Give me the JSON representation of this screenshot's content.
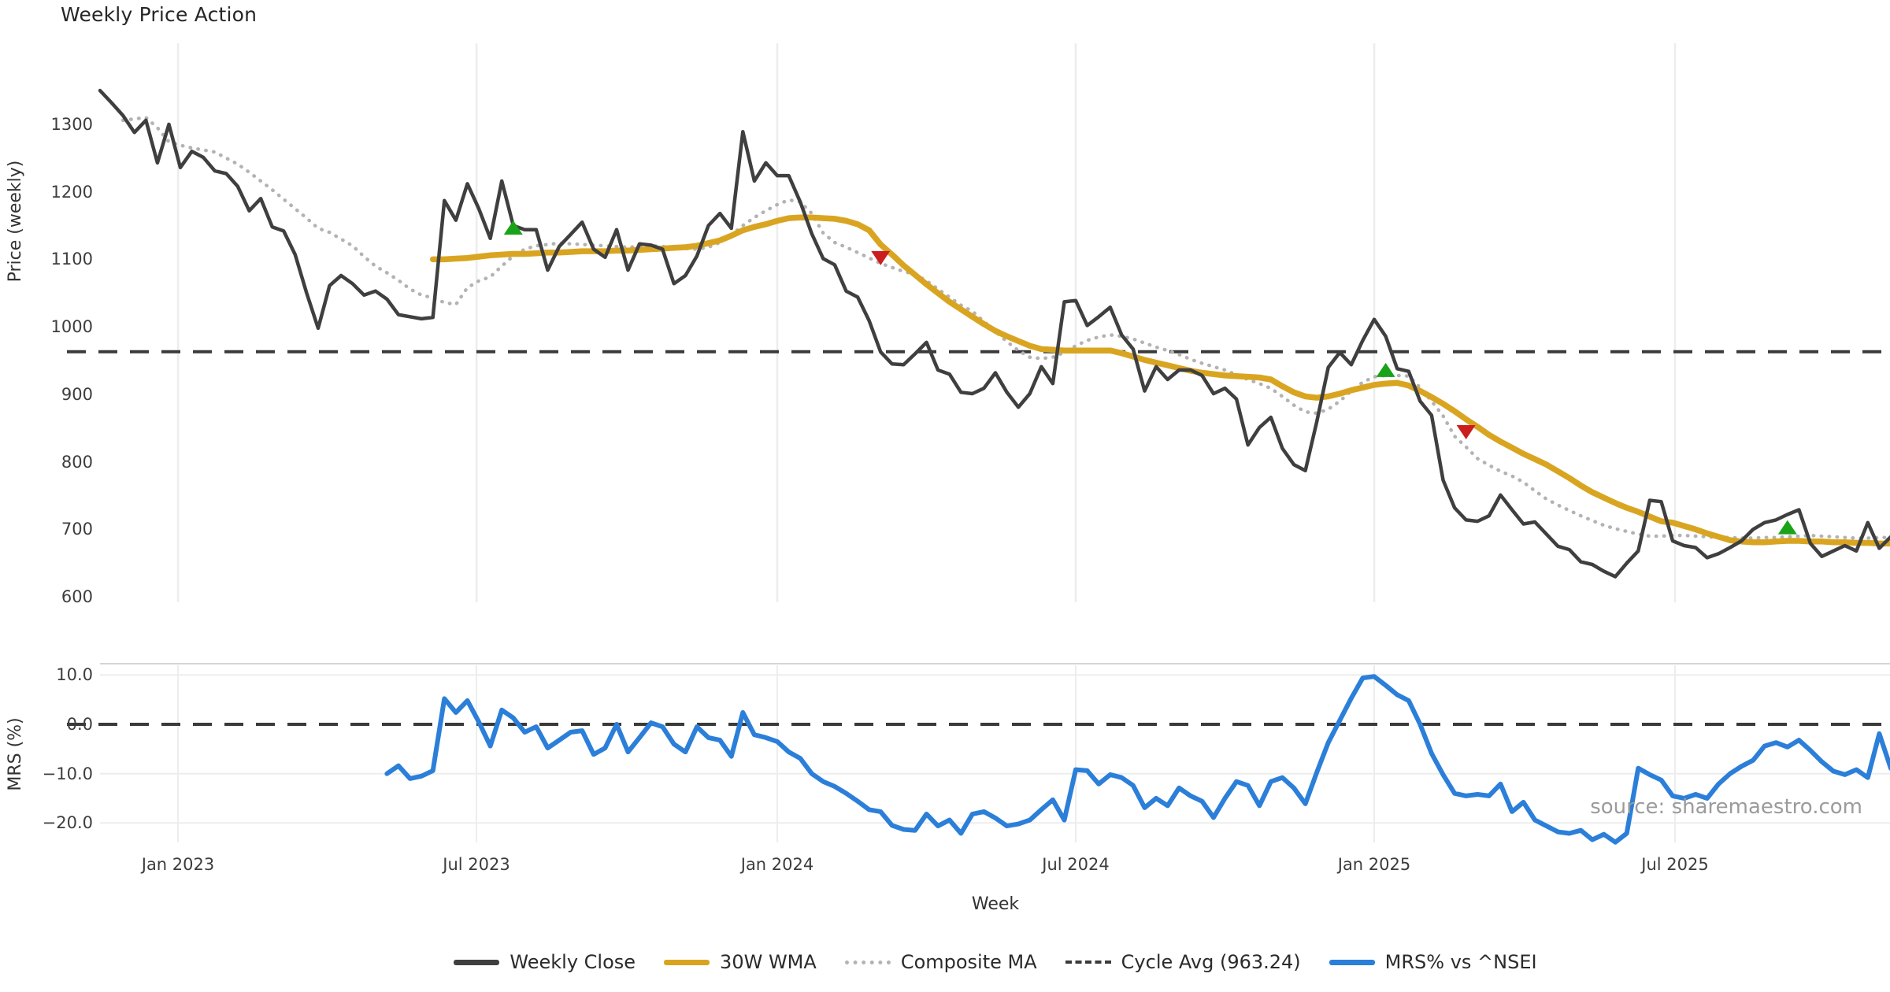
{
  "title": "Weekly Price Action",
  "source_note": "source: sharemaestro.com",
  "colors": {
    "weekly_close": "#3f3f3f",
    "wma": "#d9a521",
    "composite": "#b3b3b3",
    "cycle_avg": "#3a3a3a",
    "mrs": "#2b7fd9",
    "buy_marker": "#19a319",
    "sell_marker": "#cb1d1d",
    "gridline": "#ededed",
    "spine": "#d5d5d5"
  },
  "legend": {
    "items": [
      {
        "label": "Weekly Close",
        "swatch": "solid",
        "color": "#3f3f3f"
      },
      {
        "label": "30W WMA",
        "swatch": "solid",
        "color": "#d9a521"
      },
      {
        "label": "Composite MA",
        "swatch": "dotted",
        "color": "#b3b3b3"
      },
      {
        "label": "Cycle Avg (963.24)",
        "swatch": "dashed",
        "color": "#3a3a3a"
      },
      {
        "label": "MRS% vs ^NSEI",
        "swatch": "solid",
        "color": "#2b7fd9"
      }
    ]
  },
  "chart_data": [
    {
      "type": "line",
      "id": "price",
      "title": "Weekly Price Action",
      "xlabel": "Week",
      "ylabel": "Price (weekly)",
      "ylim": [
        592,
        1420
      ],
      "xlim": [
        0,
        156
      ],
      "grid": "vertical-only",
      "legend_position": "bottom-center",
      "x_ticks": [
        {
          "week": 6.8,
          "label": "Jan 2023"
        },
        {
          "week": 32.8,
          "label": "Jul 2023"
        },
        {
          "week": 59.0,
          "label": "Jan 2024"
        },
        {
          "week": 85.0,
          "label": "Jul 2024"
        },
        {
          "week": 111.0,
          "label": "Jan 2025"
        },
        {
          "week": 137.2,
          "label": "Jul 2025"
        }
      ],
      "y_ticks": [
        {
          "value": 600,
          "label": "600"
        },
        {
          "value": 700,
          "label": "700"
        },
        {
          "value": 800,
          "label": "800"
        },
        {
          "value": 900,
          "label": "900"
        },
        {
          "value": 1000,
          "label": "1000"
        },
        {
          "value": 1100,
          "label": "1100"
        },
        {
          "value": 1200,
          "label": "1200"
        },
        {
          "value": 1300,
          "label": "1300"
        }
      ],
      "cycle_avg": 963.24,
      "series": [
        {
          "name": "Weekly Close",
          "style": "solid",
          "color": "#3f3f3f",
          "width": 4.5,
          "start_week": 0,
          "values": [
            1350,
            1332,
            1313,
            1288,
            1306,
            1243,
            1300,
            1236,
            1260,
            1251,
            1231,
            1227,
            1208,
            1172,
            1190,
            1148,
            1142,
            1107,
            1050,
            998,
            1061,
            1076,
            1064,
            1047,
            1053,
            1041,
            1018,
            1015,
            1012,
            1014,
            1187,
            1158,
            1212,
            1175,
            1131,
            1216,
            1150,
            1144,
            1144,
            1084,
            1119,
            1137,
            1155,
            1115,
            1103,
            1144,
            1084,
            1123,
            1121,
            1115,
            1064,
            1076,
            1105,
            1150,
            1168,
            1146,
            1289,
            1216,
            1243,
            1224,
            1224,
            1185,
            1138,
            1101,
            1092,
            1053,
            1044,
            1009,
            963,
            945,
            944,
            960,
            977,
            936,
            930,
            903,
            901,
            909,
            932,
            903,
            881,
            901,
            941,
            916,
            1037,
            1039,
            1002,
            1015,
            1029,
            988,
            967,
            905,
            941,
            922,
            936,
            936,
            928,
            901,
            909,
            893,
            825,
            851,
            866,
            820,
            796,
            787,
            860,
            940,
            962,
            944,
            980,
            1011,
            986,
            938,
            934,
            890,
            869,
            773,
            732,
            714,
            712,
            720,
            751,
            729,
            708,
            711,
            693,
            675,
            670,
            652,
            648,
            638,
            630,
            650,
            668,
            743,
            741,
            683,
            676,
            673,
            658,
            664,
            673,
            683,
            700,
            710,
            714,
            722,
            729,
            679,
            660,
            668,
            676,
            668,
            710,
            672,
            689
          ]
        },
        {
          "name": "30W WMA",
          "style": "solid",
          "color": "#d9a521",
          "width": 7.5,
          "start_week": 29,
          "values": [
            1100,
            1100,
            1101,
            1102,
            1104,
            1106,
            1107,
            1108,
            1108,
            1109,
            1110,
            1110,
            1111,
            1112,
            1112,
            1112,
            1113,
            1113,
            1114,
            1115,
            1116,
            1117,
            1118,
            1120,
            1124,
            1128,
            1135,
            1143,
            1148,
            1152,
            1157,
            1161,
            1162,
            1162,
            1161,
            1160,
            1157,
            1152,
            1143,
            1122,
            1107,
            1091,
            1077,
            1063,
            1050,
            1037,
            1026,
            1015,
            1004,
            994,
            986,
            979,
            972,
            967,
            966,
            965,
            965,
            965,
            965,
            965,
            961,
            956,
            951,
            947,
            943,
            939,
            935,
            932,
            930,
            928,
            927,
            926,
            925,
            922,
            912,
            903,
            897,
            895,
            897,
            901,
            906,
            910,
            914,
            916,
            917,
            913,
            905,
            896,
            886,
            875,
            863,
            852,
            840,
            830,
            821,
            812,
            804,
            796,
            786,
            776,
            765,
            755,
            747,
            739,
            732,
            726,
            719,
            712,
            710,
            705,
            700,
            694,
            689,
            684,
            682,
            681,
            681,
            682,
            683,
            683,
            682,
            682,
            681,
            681,
            680,
            680,
            679,
            679
          ]
        },
        {
          "name": "Composite MA",
          "style": "dotted",
          "color": "#b3b3b3",
          "width": 4.5,
          "start_week": 2,
          "values": [
            1306,
            1308,
            1310,
            1295,
            1274,
            1269,
            1265,
            1262,
            1259,
            1250,
            1241,
            1229,
            1216,
            1203,
            1189,
            1175,
            1161,
            1146,
            1140,
            1130,
            1120,
            1104,
            1090,
            1080,
            1069,
            1056,
            1047,
            1043,
            1036,
            1033,
            1058,
            1068,
            1074,
            1090,
            1105,
            1115,
            1120,
            1122,
            1124,
            1123,
            1122,
            1121,
            1120,
            1119,
            1118,
            1119,
            1120,
            1119,
            1118,
            1116,
            1115,
            1118,
            1125,
            1136,
            1150,
            1162,
            1172,
            1181,
            1188,
            1185,
            1168,
            1139,
            1125,
            1118,
            1110,
            1102,
            1094,
            1088,
            1082,
            1078,
            1068,
            1056,
            1044,
            1032,
            1023,
            1008,
            993,
            978,
            965,
            955,
            953,
            955,
            962,
            972,
            980,
            985,
            988,
            986,
            982,
            976,
            970,
            965,
            959,
            952,
            946,
            941,
            936,
            929,
            922,
            916,
            909,
            897,
            884,
            874,
            872,
            878,
            890,
            905,
            918,
            926,
            928,
            928,
            927,
            910,
            890,
            868,
            838,
            822,
            805,
            795,
            786,
            779,
            770,
            757,
            745,
            736,
            728,
            720,
            713,
            706,
            701,
            697,
            693,
            690,
            690,
            691,
            691,
            690,
            689,
            688,
            688,
            687,
            687,
            688,
            688,
            689,
            690,
            691,
            690,
            689,
            688,
            687,
            687,
            688,
            688
          ]
        }
      ],
      "markers": {
        "buy": [
          {
            "week": 36,
            "price": 1146
          },
          {
            "week": 112,
            "price": 935
          },
          {
            "week": 147,
            "price": 702
          }
        ],
        "sell": [
          {
            "week": 68,
            "price": 1103
          },
          {
            "week": 119,
            "price": 845
          }
        ]
      }
    },
    {
      "type": "line",
      "id": "mrs",
      "xlabel": "Week",
      "ylabel": "MRS (%)",
      "ylim": [
        -23.94,
        11.97
      ],
      "xlim": [
        0,
        156
      ],
      "zero_line": 0.0,
      "y_ticks": [
        {
          "value": 10,
          "label": "10.0",
          "gridline": true
        },
        {
          "value": 0,
          "label": "0.0",
          "gridline": false
        },
        {
          "value": -10,
          "label": "−10.0",
          "gridline": true
        },
        {
          "value": -20,
          "label": "−20.0",
          "gridline": true
        }
      ],
      "series": [
        {
          "name": "MRS% vs ^NSEI",
          "style": "solid",
          "color": "#2b7fd9",
          "width": 6,
          "start_week": 25,
          "values": [
            -10.0,
            -8.4,
            -11.0,
            -10.5,
            -9.4,
            5.2,
            2.4,
            4.8,
            0.5,
            -4.4,
            2.9,
            1.3,
            -1.6,
            -0.5,
            -4.8,
            -3.2,
            -1.6,
            -1.3,
            -6.1,
            -4.8,
            0.0,
            -5.6,
            -2.7,
            0.3,
            -0.5,
            -4.0,
            -5.6,
            -0.5,
            -2.7,
            -3.2,
            -6.5,
            2.4,
            -2.1,
            -2.7,
            -3.5,
            -5.6,
            -6.9,
            -10.0,
            -11.6,
            -12.6,
            -14.0,
            -15.6,
            -17.3,
            -17.7,
            -20.5,
            -21.3,
            -21.5,
            -18.2,
            -20.6,
            -19.4,
            -22.1,
            -18.2,
            -17.7,
            -19.0,
            -20.6,
            -20.2,
            -19.4,
            -17.3,
            -15.3,
            -19.4,
            -9.2,
            -9.4,
            -12.1,
            -10.2,
            -10.8,
            -12.4,
            -16.9,
            -15.0,
            -16.5,
            -12.9,
            -14.5,
            -15.6,
            -18.9,
            -15.0,
            -11.6,
            -12.4,
            -16.5,
            -11.6,
            -10.8,
            -12.9,
            -16.1,
            -9.7,
            -3.7,
            0.8,
            5.3,
            9.4,
            9.7,
            7.9,
            6.0,
            4.8,
            0.0,
            -5.9,
            -10.2,
            -14.0,
            -14.5,
            -14.2,
            -14.5,
            -12.1,
            -17.7,
            -15.8,
            -19.4,
            -20.6,
            -21.8,
            -22.1,
            -21.5,
            -23.4,
            -22.3,
            -23.9,
            -22.1,
            -8.9,
            -10.2,
            -11.3,
            -14.5,
            -15.0,
            -14.2,
            -15.0,
            -12.1,
            -10.0,
            -8.5,
            -7.3,
            -4.4,
            -3.7,
            -4.6,
            -3.2,
            -5.3,
            -7.6,
            -9.5,
            -10.2,
            -9.2,
            -10.8,
            -1.9,
            -8.9
          ]
        }
      ]
    }
  ]
}
